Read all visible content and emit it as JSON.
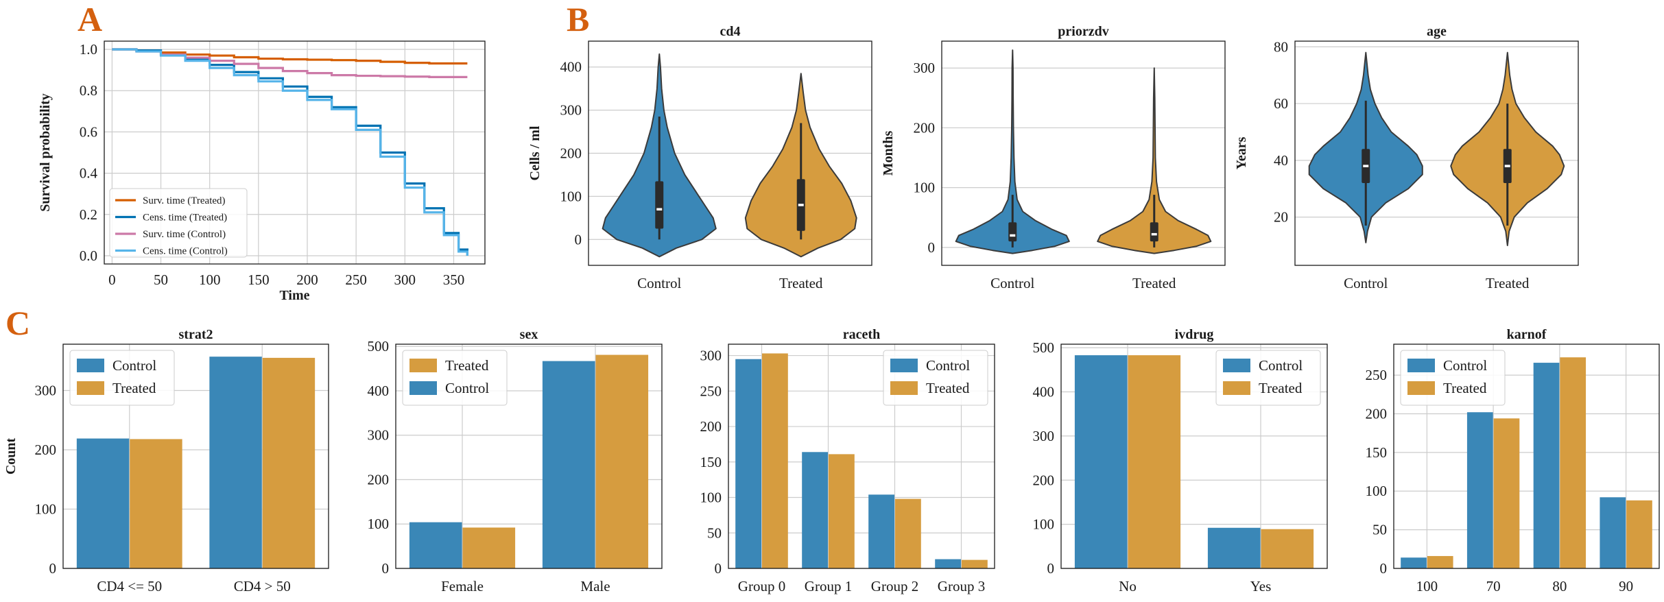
{
  "panel_labels": {
    "a": "A",
    "b": "B",
    "c": "C"
  },
  "colors": {
    "control": "#3a87b7",
    "treated": "#d69c3f",
    "panel_label": "#d4600f",
    "surv_treated": "#d55e00",
    "cens_treated": "#0072b2",
    "surv_control": "#cc79a7",
    "cens_control": "#56b4e9",
    "grid": "#cccccc",
    "violin_box": "#2b2b2b"
  },
  "chart_data": [
    {
      "id": "km",
      "type": "line",
      "title": "",
      "xlabel": "Time",
      "ylabel": "Survival probability",
      "xlim": [
        -8,
        382
      ],
      "ylim": [
        -0.04,
        1.04
      ],
      "xticks": [
        "0",
        "50",
        "100",
        "150",
        "200",
        "250",
        "300",
        "350"
      ],
      "yticks": [
        "0.0",
        "0.2",
        "0.4",
        "0.6",
        "0.8",
        "1.0"
      ],
      "series": [
        {
          "name": "Surv. time (Treated)",
          "color_key": "surv_treated",
          "x": [
            0,
            25,
            50,
            75,
            100,
            125,
            150,
            175,
            200,
            225,
            250,
            275,
            300,
            325,
            364
          ],
          "y": [
            1.0,
            0.995,
            0.985,
            0.975,
            0.97,
            0.962,
            0.955,
            0.952,
            0.95,
            0.948,
            0.945,
            0.94,
            0.935,
            0.932,
            0.932
          ]
        },
        {
          "name": "Cens. time (Treated)",
          "color_key": "cens_treated",
          "x": [
            0,
            25,
            50,
            75,
            100,
            125,
            150,
            175,
            200,
            225,
            250,
            275,
            300,
            320,
            340,
            355,
            364
          ],
          "y": [
            1.0,
            0.995,
            0.975,
            0.95,
            0.925,
            0.89,
            0.86,
            0.82,
            0.77,
            0.72,
            0.63,
            0.5,
            0.35,
            0.23,
            0.11,
            0.03,
            0.0
          ]
        },
        {
          "name": "Surv. time (Control)",
          "color_key": "surv_control",
          "x": [
            0,
            25,
            50,
            75,
            100,
            125,
            150,
            175,
            200,
            225,
            250,
            275,
            300,
            325,
            364
          ],
          "y": [
            1.0,
            0.99,
            0.975,
            0.96,
            0.945,
            0.93,
            0.91,
            0.895,
            0.885,
            0.875,
            0.872,
            0.87,
            0.868,
            0.866,
            0.866
          ]
        },
        {
          "name": "Cens. time (Control)",
          "color_key": "cens_control",
          "x": [
            0,
            25,
            50,
            75,
            100,
            125,
            150,
            175,
            200,
            225,
            250,
            275,
            300,
            320,
            340,
            355,
            364
          ],
          "y": [
            1.0,
            0.99,
            0.97,
            0.945,
            0.91,
            0.875,
            0.845,
            0.8,
            0.755,
            0.71,
            0.61,
            0.48,
            0.33,
            0.21,
            0.1,
            0.02,
            0.0
          ]
        }
      ],
      "legend": "lower-left"
    },
    {
      "id": "cd4",
      "type": "violin",
      "title": "cd4",
      "ylabel": "Cells / ml",
      "categories": [
        "Control",
        "Treated"
      ],
      "ylim": [
        -60,
        460
      ],
      "yticks": [
        0,
        100,
        200,
        300,
        400
      ],
      "groups": [
        {
          "name": "Control",
          "color_key": "control",
          "q1": 25,
          "median": 70,
          "q3": 135,
          "whisker_low": 0,
          "whisker_high": 285,
          "profile": [
            [
              -40,
              0
            ],
            [
              -20,
              0.3
            ],
            [
              0,
              0.75
            ],
            [
              25,
              1.0
            ],
            [
              50,
              0.95
            ],
            [
              80,
              0.8
            ],
            [
              110,
              0.65
            ],
            [
              150,
              0.45
            ],
            [
              200,
              0.27
            ],
            [
              260,
              0.14
            ],
            [
              300,
              0.08
            ],
            [
              350,
              0.04
            ],
            [
              400,
              0.02
            ],
            [
              430,
              0
            ]
          ]
        },
        {
          "name": "Treated",
          "color_key": "treated",
          "q1": 20,
          "median": 80,
          "q3": 140,
          "whisker_low": 0,
          "whisker_high": 270,
          "profile": [
            [
              -40,
              0
            ],
            [
              -20,
              0.3
            ],
            [
              0,
              0.7
            ],
            [
              25,
              0.95
            ],
            [
              50,
              0.98
            ],
            [
              90,
              0.88
            ],
            [
              130,
              0.72
            ],
            [
              170,
              0.5
            ],
            [
              210,
              0.32
            ],
            [
              260,
              0.16
            ],
            [
              300,
              0.08
            ],
            [
              340,
              0.04
            ],
            [
              385,
              0
            ]
          ]
        }
      ]
    },
    {
      "id": "priorzdv",
      "type": "violin",
      "title": "priorzdv",
      "ylabel": "Months",
      "categories": [
        "Control",
        "Treated"
      ],
      "ylim": [
        -30,
        345
      ],
      "yticks": [
        0,
        100,
        200,
        300
      ],
      "groups": [
        {
          "name": "Control",
          "color_key": "control",
          "q1": 10,
          "median": 20,
          "q3": 42,
          "whisker_low": 0,
          "whisker_high": 88,
          "profile": [
            [
              -10,
              0
            ],
            [
              -5,
              0.35
            ],
            [
              2,
              0.75
            ],
            [
              10,
              1.0
            ],
            [
              20,
              0.95
            ],
            [
              30,
              0.7
            ],
            [
              45,
              0.4
            ],
            [
              60,
              0.18
            ],
            [
              80,
              0.08
            ],
            [
              110,
              0.04
            ],
            [
              150,
              0.025
            ],
            [
              200,
              0.015
            ],
            [
              250,
              0.01
            ],
            [
              300,
              0.008
            ],
            [
              330,
              0
            ]
          ]
        },
        {
          "name": "Treated",
          "color_key": "treated",
          "q1": 10,
          "median": 22,
          "q3": 42,
          "whisker_low": 0,
          "whisker_high": 88,
          "profile": [
            [
              -10,
              0
            ],
            [
              -5,
              0.35
            ],
            [
              2,
              0.75
            ],
            [
              10,
              1.0
            ],
            [
              20,
              0.95
            ],
            [
              30,
              0.75
            ],
            [
              45,
              0.42
            ],
            [
              60,
              0.2
            ],
            [
              80,
              0.09
            ],
            [
              110,
              0.04
            ],
            [
              150,
              0.02
            ],
            [
              200,
              0.015
            ],
            [
              250,
              0.01
            ],
            [
              300,
              0
            ]
          ]
        }
      ]
    },
    {
      "id": "age",
      "type": "violin",
      "title": "age",
      "ylabel": "Years",
      "categories": [
        "Control",
        "Treated"
      ],
      "ylim": [
        3,
        82
      ],
      "yticks": [
        20,
        40,
        60,
        80
      ],
      "groups": [
        {
          "name": "Control",
          "color_key": "control",
          "q1": 32,
          "median": 38,
          "q3": 44,
          "whisker_low": 17,
          "whisker_high": 61,
          "profile": [
            [
              11,
              0
            ],
            [
              15,
              0.03
            ],
            [
              20,
              0.1
            ],
            [
              25,
              0.35
            ],
            [
              30,
              0.75
            ],
            [
              35,
              1.0
            ],
            [
              38,
              1.0
            ],
            [
              42,
              0.9
            ],
            [
              45,
              0.75
            ],
            [
              50,
              0.45
            ],
            [
              55,
              0.28
            ],
            [
              60,
              0.16
            ],
            [
              65,
              0.08
            ],
            [
              70,
              0.04
            ],
            [
              78,
              0
            ]
          ]
        },
        {
          "name": "Treated",
          "color_key": "treated",
          "q1": 32,
          "median": 38,
          "q3": 44,
          "whisker_low": 17,
          "whisker_high": 60,
          "profile": [
            [
              10,
              0
            ],
            [
              15,
              0.03
            ],
            [
              20,
              0.12
            ],
            [
              25,
              0.35
            ],
            [
              30,
              0.7
            ],
            [
              35,
              0.95
            ],
            [
              38,
              1.0
            ],
            [
              42,
              0.92
            ],
            [
              45,
              0.8
            ],
            [
              50,
              0.5
            ],
            [
              55,
              0.3
            ],
            [
              60,
              0.15
            ],
            [
              65,
              0.08
            ],
            [
              70,
              0.04
            ],
            [
              78,
              0
            ]
          ]
        }
      ]
    },
    {
      "id": "strat2",
      "type": "bar",
      "title": "strat2",
      "ylabel": "Count",
      "categories": [
        "CD4 <= 50",
        "CD4 > 50"
      ],
      "ylim": [
        0,
        378
      ],
      "yticks": [
        0,
        100,
        200,
        300
      ],
      "series": [
        {
          "name": "Control",
          "color_key": "control",
          "values": [
            219,
            357
          ]
        },
        {
          "name": "Treated",
          "color_key": "treated",
          "values": [
            218,
            355
          ]
        }
      ],
      "legend": {
        "position": "upper-left",
        "entries": [
          "Control",
          "Treated"
        ]
      }
    },
    {
      "id": "sex",
      "type": "bar",
      "title": "sex",
      "ylabel": "",
      "categories": [
        "Female",
        "Male"
      ],
      "ylim": [
        0,
        505
      ],
      "yticks": [
        0,
        100,
        200,
        300,
        400,
        500
      ],
      "series": [
        {
          "name": "Control",
          "color_key": "control",
          "values": [
            104,
            467
          ]
        },
        {
          "name": "Treated",
          "color_key": "treated",
          "values": [
            92,
            481
          ]
        }
      ],
      "legend": {
        "position": "upper-left",
        "entries": [
          "Treated",
          "Control"
        ]
      }
    },
    {
      "id": "raceth",
      "type": "bar",
      "title": "raceth",
      "ylabel": "",
      "categories": [
        "Group 0",
        "Group 1",
        "Group 2",
        "Group 3"
      ],
      "ylim": [
        0,
        316
      ],
      "yticks": [
        0,
        50,
        100,
        150,
        200,
        250,
        300
      ],
      "series": [
        {
          "name": "Control",
          "color_key": "control",
          "values": [
            295,
            164,
            104,
            13
          ]
        },
        {
          "name": "Treated",
          "color_key": "treated",
          "values": [
            303,
            161,
            98,
            12
          ]
        }
      ],
      "legend": {
        "position": "upper-right",
        "entries": [
          "Control",
          "Treated"
        ]
      }
    },
    {
      "id": "ivdrug",
      "type": "bar",
      "title": "ivdrug",
      "ylabel": "",
      "categories": [
        "No",
        "Yes"
      ],
      "ylim": [
        0,
        508
      ],
      "yticks": [
        0,
        100,
        200,
        300,
        400,
        500
      ],
      "series": [
        {
          "name": "Control",
          "color_key": "control",
          "values": [
            483,
            92
          ]
        },
        {
          "name": "Treated",
          "color_key": "treated",
          "values": [
            483,
            89
          ]
        }
      ],
      "legend": {
        "position": "upper-right",
        "entries": [
          "Control",
          "Treated"
        ]
      }
    },
    {
      "id": "karnof",
      "type": "bar",
      "title": "karnof",
      "ylabel": "",
      "categories": [
        "100",
        "70",
        "80",
        "90"
      ],
      "ylim": [
        0,
        290
      ],
      "yticks": [
        0,
        50,
        100,
        150,
        200,
        250
      ],
      "series": [
        {
          "name": "Control",
          "color_key": "control",
          "values": [
            14,
            202,
            266,
            92
          ]
        },
        {
          "name": "Treated",
          "color_key": "treated",
          "values": [
            16,
            194,
            273,
            88
          ]
        }
      ],
      "legend": {
        "position": "upper-left",
        "entries": [
          "Control",
          "Treated"
        ]
      }
    }
  ]
}
